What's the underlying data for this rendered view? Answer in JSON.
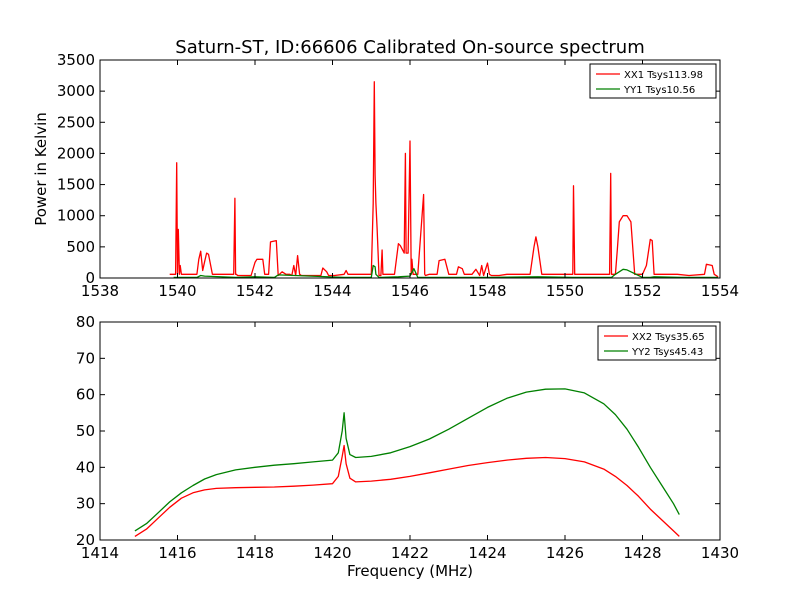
{
  "title": "Saturn-ST, ID:66606 Calibrated On-source spectrum",
  "chart_data": [
    {
      "type": "line",
      "ylabel": "Power in Kelvin",
      "xlabel": "",
      "xlim": [
        1538,
        1554
      ],
      "ylim": [
        0,
        3500
      ],
      "xticks": [
        1538,
        1540,
        1542,
        1544,
        1546,
        1548,
        1550,
        1552,
        1554
      ],
      "yticks": [
        0,
        500,
        1000,
        1500,
        2000,
        2500,
        3000,
        3500
      ],
      "grid": false,
      "legend_position": "top-right",
      "series": [
        {
          "name": "XX1 Tsys113.98",
          "color": "#ff0000",
          "x": [
            1539.8,
            1539.95,
            1539.98,
            1540.0,
            1540.02,
            1540.05,
            1540.07,
            1540.1,
            1540.2,
            1540.5,
            1540.55,
            1540.6,
            1540.65,
            1540.7,
            1540.75,
            1540.8,
            1540.9,
            1541.0,
            1541.1,
            1541.45,
            1541.48,
            1541.5,
            1541.52,
            1541.55,
            1541.9,
            1542.0,
            1542.05,
            1542.2,
            1542.25,
            1542.35,
            1542.4,
            1542.55,
            1542.6,
            1542.7,
            1542.8,
            1542.9,
            1542.95,
            1543.0,
            1543.05,
            1543.1,
            1543.15,
            1543.2,
            1543.25,
            1543.3,
            1543.5,
            1543.7,
            1543.75,
            1543.85,
            1543.9,
            1544.0,
            1544.05,
            1544.3,
            1544.35,
            1544.4,
            1544.7,
            1544.9,
            1545.0,
            1545.05,
            1545.08,
            1545.1,
            1545.12,
            1545.15,
            1545.2,
            1545.25,
            1545.28,
            1545.3,
            1545.35,
            1545.45,
            1545.6,
            1545.7,
            1545.75,
            1545.85,
            1545.88,
            1545.9,
            1545.95,
            1546.0,
            1546.03,
            1546.05,
            1546.08,
            1546.1,
            1546.15,
            1546.2,
            1546.35,
            1546.38,
            1546.4,
            1546.5,
            1546.7,
            1546.75,
            1546.9,
            1547.0,
            1547.2,
            1547.25,
            1547.35,
            1547.4,
            1547.6,
            1547.7,
            1547.8,
            1547.85,
            1547.9,
            1548.0,
            1548.05,
            1548.1,
            1548.3,
            1548.5,
            1548.6,
            1549.1,
            1549.2,
            1549.25,
            1549.3,
            1549.4,
            1549.5,
            1550.0,
            1550.05,
            1550.2,
            1550.22,
            1550.25,
            1550.4,
            1550.7,
            1551.1,
            1551.15,
            1551.18,
            1551.2,
            1551.3,
            1551.35,
            1551.4,
            1551.5,
            1551.6,
            1551.7,
            1551.8,
            1551.85,
            1551.9,
            1552.0,
            1552.1,
            1552.2,
            1552.25,
            1552.3,
            1552.5,
            1552.9,
            1553.2,
            1553.6,
            1553.65,
            1553.8,
            1553.85,
            1553.95
          ],
          "y": [
            60,
            60,
            1850,
            60,
            780,
            60,
            200,
            60,
            60,
            60,
            300,
            430,
            120,
            260,
            400,
            380,
            60,
            60,
            60,
            60,
            1280,
            60,
            60,
            40,
            40,
            250,
            300,
            300,
            60,
            60,
            580,
            600,
            40,
            100,
            60,
            60,
            40,
            200,
            40,
            360,
            60,
            40,
            40,
            40,
            40,
            40,
            160,
            100,
            40,
            40,
            40,
            60,
            120,
            60,
            60,
            60,
            60,
            1200,
            3150,
            1650,
            1200,
            800,
            40,
            40,
            450,
            60,
            60,
            60,
            60,
            550,
            520,
            400,
            2000,
            400,
            400,
            2200,
            60,
            300,
            60,
            60,
            60,
            60,
            1340,
            60,
            40,
            60,
            60,
            280,
            300,
            60,
            60,
            180,
            150,
            60,
            60,
            140,
            40,
            200,
            40,
            240,
            60,
            40,
            40,
            60,
            60,
            60,
            500,
            660,
            500,
            60,
            60,
            60,
            60,
            60,
            1480,
            60,
            60,
            60,
            60,
            60,
            1680,
            60,
            60,
            450,
            900,
            1000,
            1000,
            900,
            60,
            60,
            60,
            60,
            200,
            620,
            600,
            60,
            60,
            60,
            40,
            60,
            220,
            200,
            60,
            20
          ]
        },
        {
          "name": "YY1 Tsys10.56",
          "color": "#008000",
          "x": [
            1539.9,
            1540.5,
            1540.6,
            1540.7,
            1541.5,
            1542.0,
            1542.5,
            1542.6,
            1544.3,
            1544.9,
            1545.0,
            1545.05,
            1545.1,
            1545.12,
            1545.2,
            1545.7,
            1546.0,
            1546.1,
            1546.2,
            1548.0,
            1549.3,
            1550.2,
            1551.2,
            1551.3,
            1551.5,
            1551.6,
            1551.7,
            1552.0,
            1552.2,
            1552.3,
            1553.0,
            1553.95
          ],
          "y": [
            10,
            10,
            40,
            30,
            10,
            20,
            10,
            50,
            10,
            10,
            10,
            200,
            180,
            60,
            10,
            20,
            30,
            150,
            10,
            10,
            20,
            10,
            10,
            60,
            140,
            130,
            100,
            10,
            10,
            20,
            10,
            10
          ]
        }
      ]
    },
    {
      "type": "line",
      "ylabel": "",
      "xlabel": "Frequency (MHz)",
      "xlim": [
        1414,
        1430
      ],
      "ylim": [
        20,
        80
      ],
      "xticks": [
        1414,
        1416,
        1418,
        1420,
        1422,
        1424,
        1426,
        1428,
        1430
      ],
      "yticks": [
        20,
        30,
        40,
        50,
        60,
        70,
        80
      ],
      "grid": false,
      "legend_position": "top-right",
      "series": [
        {
          "name": "XX2 Tsys35.65",
          "color": "#ff0000",
          "x": [
            1414.9,
            1415.2,
            1415.5,
            1415.8,
            1416.1,
            1416.4,
            1416.7,
            1417.0,
            1417.5,
            1418.0,
            1418.5,
            1419.0,
            1419.5,
            1420.0,
            1420.15,
            1420.25,
            1420.3,
            1420.35,
            1420.45,
            1420.6,
            1421.0,
            1421.5,
            1422.0,
            1422.5,
            1423.0,
            1423.5,
            1424.0,
            1424.5,
            1425.0,
            1425.5,
            1426.0,
            1426.5,
            1427.0,
            1427.3,
            1427.6,
            1427.9,
            1428.2,
            1428.5,
            1428.8,
            1428.95
          ],
          "y": [
            21,
            23,
            26,
            29,
            31.5,
            33,
            33.8,
            34.2,
            34.4,
            34.5,
            34.6,
            34.8,
            35.1,
            35.5,
            37.5,
            43,
            46,
            41,
            37,
            36,
            36.2,
            36.7,
            37.5,
            38.5,
            39.5,
            40.5,
            41.3,
            42,
            42.5,
            42.7,
            42.4,
            41.5,
            39.5,
            37.5,
            35,
            32,
            28.5,
            25.5,
            22.5,
            21
          ]
        },
        {
          "name": "YY2 Tsys45.43",
          "color": "#008000",
          "x": [
            1414.9,
            1415.2,
            1415.5,
            1415.8,
            1416.1,
            1416.4,
            1416.7,
            1417.0,
            1417.5,
            1418.0,
            1418.5,
            1419.0,
            1419.5,
            1420.0,
            1420.15,
            1420.25,
            1420.3,
            1420.35,
            1420.45,
            1420.6,
            1421.0,
            1421.5,
            1422.0,
            1422.5,
            1423.0,
            1423.5,
            1424.0,
            1424.5,
            1425.0,
            1425.5,
            1426.0,
            1426.5,
            1427.0,
            1427.3,
            1427.6,
            1427.9,
            1428.2,
            1428.5,
            1428.8,
            1428.95
          ],
          "y": [
            22.5,
            24.5,
            27.5,
            30.5,
            33,
            35,
            36.8,
            38,
            39.3,
            40,
            40.6,
            41,
            41.5,
            42,
            44,
            50,
            55,
            48,
            43.5,
            42.7,
            43,
            44,
            45.7,
            47.8,
            50.5,
            53.5,
            56.5,
            59,
            60.7,
            61.5,
            61.6,
            60.5,
            57.5,
            54.5,
            50.5,
            45.5,
            40,
            35,
            30,
            27
          ]
        }
      ]
    }
  ]
}
